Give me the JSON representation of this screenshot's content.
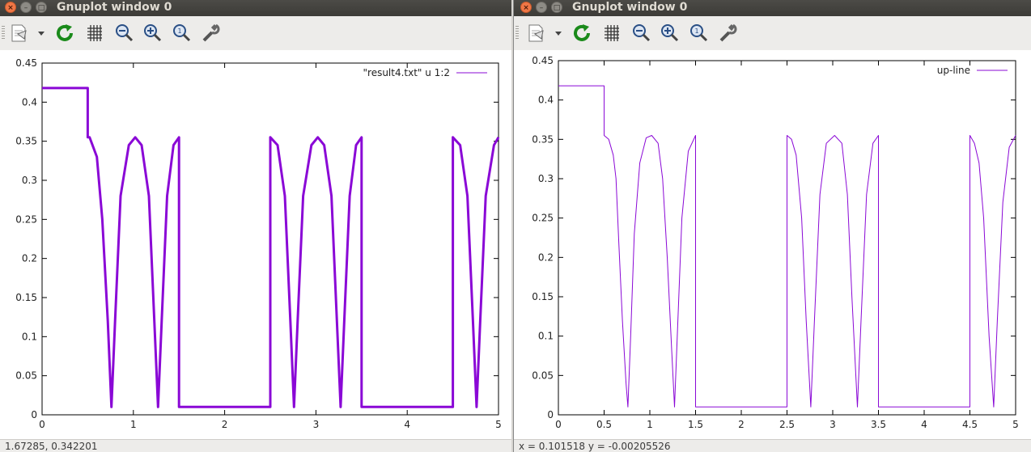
{
  "windows": [
    {
      "title": "Gnuplot window 0",
      "status": "1.67285,  0.342201",
      "legend": "\"result4.txt\" u 1:2",
      "chart_data": {
        "type": "line",
        "series": [
          {
            "name": "\"result4.txt\" u 1:2",
            "points": [
              [
                0,
                0.418
              ],
              [
                0.5,
                0.418
              ],
              [
                0.5,
                0.355
              ],
              [
                0.52,
                0.355
              ],
              [
                0.6,
                0.33
              ],
              [
                0.66,
                0.25
              ],
              [
                0.72,
                0.12
              ],
              [
                0.76,
                0.01
              ],
              [
                0.8,
                0.12
              ],
              [
                0.86,
                0.28
              ],
              [
                0.95,
                0.345
              ],
              [
                1.02,
                0.355
              ],
              [
                1.09,
                0.345
              ],
              [
                1.17,
                0.28
              ],
              [
                1.23,
                0.12
              ],
              [
                1.27,
                0.01
              ],
              [
                1.31,
                0.12
              ],
              [
                1.37,
                0.28
              ],
              [
                1.44,
                0.345
              ],
              [
                1.5,
                0.355
              ],
              [
                1.5,
                0.01
              ],
              [
                2.5,
                0.01
              ],
              [
                2.5,
                0.355
              ],
              [
                2.58,
                0.345
              ],
              [
                2.66,
                0.28
              ],
              [
                2.72,
                0.12
              ],
              [
                2.76,
                0.01
              ],
              [
                2.8,
                0.12
              ],
              [
                2.86,
                0.28
              ],
              [
                2.95,
                0.345
              ],
              [
                3.02,
                0.355
              ],
              [
                3.09,
                0.345
              ],
              [
                3.17,
                0.28
              ],
              [
                3.23,
                0.12
              ],
              [
                3.27,
                0.01
              ],
              [
                3.31,
                0.12
              ],
              [
                3.37,
                0.28
              ],
              [
                3.44,
                0.345
              ],
              [
                3.5,
                0.355
              ],
              [
                3.5,
                0.01
              ],
              [
                4.5,
                0.01
              ],
              [
                4.5,
                0.355
              ],
              [
                4.58,
                0.345
              ],
              [
                4.66,
                0.28
              ],
              [
                4.72,
                0.12
              ],
              [
                4.76,
                0.01
              ],
              [
                4.8,
                0.12
              ],
              [
                4.86,
                0.28
              ],
              [
                4.95,
                0.345
              ],
              [
                5,
                0.355
              ]
            ]
          }
        ],
        "xlim": [
          0,
          5
        ],
        "ylim": [
          0,
          0.45
        ],
        "xticks": [
          "0",
          "1",
          "2",
          "3",
          "4",
          "5"
        ],
        "yticks": [
          "0",
          "0.05",
          "0.1",
          "0.15",
          "0.2",
          "0.25",
          "0.3",
          "0.35",
          "0.4",
          "0.45"
        ],
        "legend_position": "top-right",
        "line_color": "#8a08d6",
        "line_width": 3
      }
    },
    {
      "title": "Gnuplot window 0",
      "status": "x = 0.101518 y = -0.00205526",
      "legend": "up-line",
      "chart_data": {
        "type": "line",
        "series": [
          {
            "name": "up-line",
            "points": [
              [
                0,
                0.418
              ],
              [
                0.5,
                0.418
              ],
              [
                0.5,
                0.355
              ],
              [
                0.55,
                0.35
              ],
              [
                0.6,
                0.33
              ],
              [
                0.63,
                0.3
              ],
              [
                0.66,
                0.22
              ],
              [
                0.7,
                0.12
              ],
              [
                0.74,
                0.04
              ],
              [
                0.76,
                0.01
              ],
              [
                0.79,
                0.1
              ],
              [
                0.83,
                0.23
              ],
              [
                0.89,
                0.32
              ],
              [
                0.96,
                0.352
              ],
              [
                1.02,
                0.355
              ],
              [
                1.09,
                0.345
              ],
              [
                1.14,
                0.3
              ],
              [
                1.19,
                0.2
              ],
              [
                1.24,
                0.08
              ],
              [
                1.27,
                0.01
              ],
              [
                1.3,
                0.1
              ],
              [
                1.35,
                0.25
              ],
              [
                1.42,
                0.335
              ],
              [
                1.5,
                0.355
              ],
              [
                1.5,
                0.01
              ],
              [
                2.5,
                0.01
              ],
              [
                2.5,
                0.355
              ],
              [
                2.55,
                0.35
              ],
              [
                2.6,
                0.33
              ],
              [
                2.66,
                0.25
              ],
              [
                2.71,
                0.12
              ],
              [
                2.76,
                0.01
              ],
              [
                2.8,
                0.12
              ],
              [
                2.86,
                0.28
              ],
              [
                2.93,
                0.345
              ],
              [
                3.02,
                0.355
              ],
              [
                3.1,
                0.345
              ],
              [
                3.16,
                0.28
              ],
              [
                3.21,
                0.15
              ],
              [
                3.27,
                0.01
              ],
              [
                3.31,
                0.12
              ],
              [
                3.37,
                0.28
              ],
              [
                3.44,
                0.345
              ],
              [
                3.5,
                0.355
              ],
              [
                3.5,
                0.01
              ],
              [
                4.5,
                0.01
              ],
              [
                4.5,
                0.355
              ],
              [
                4.55,
                0.345
              ],
              [
                4.6,
                0.32
              ],
              [
                4.65,
                0.25
              ],
              [
                4.71,
                0.1
              ],
              [
                4.76,
                0.01
              ],
              [
                4.8,
                0.12
              ],
              [
                4.86,
                0.27
              ],
              [
                4.93,
                0.34
              ],
              [
                5,
                0.355
              ]
            ]
          }
        ],
        "xlim": [
          0,
          5
        ],
        "ylim": [
          0,
          0.45
        ],
        "xticks": [
          "0",
          "0.5",
          "1",
          "1.5",
          "2",
          "2.5",
          "3",
          "3.5",
          "4",
          "4.5",
          "5"
        ],
        "yticks": [
          "0",
          "0.05",
          "0.1",
          "0.15",
          "0.2",
          "0.25",
          "0.3",
          "0.35",
          "0.4",
          "0.45"
        ],
        "legend_position": "top-right",
        "line_color": "#8a08d6",
        "line_width": 1
      }
    }
  ],
  "toolbar_icons": [
    "copy-to-clipboard-icon",
    "dropdown-arrow-icon",
    "replot-icon",
    "grid-icon",
    "zoom-previous-icon",
    "zoom-next-icon",
    "autoscale-icon",
    "config-icon"
  ],
  "window_buttons": {
    "close": "×",
    "min": "–",
    "max": "□"
  }
}
